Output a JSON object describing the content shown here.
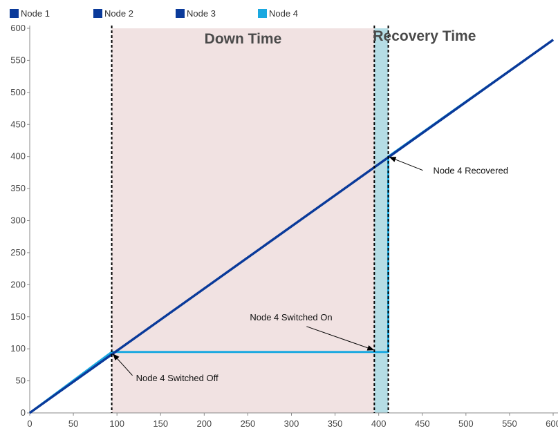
{
  "chart_data": {
    "type": "line",
    "x_range": [
      0,
      600
    ],
    "y_range": [
      0,
      600
    ],
    "x_ticks": [
      0,
      50,
      100,
      150,
      200,
      250,
      300,
      350,
      400,
      450,
      500,
      550,
      600
    ],
    "y_ticks": [
      0,
      50,
      100,
      150,
      200,
      250,
      300,
      350,
      400,
      450,
      500,
      550,
      600
    ],
    "x_tick_labels": [
      "0",
      "50",
      "100",
      "150",
      "200",
      "250",
      "300",
      "350",
      "400",
      "450",
      "500",
      "550",
      "600"
    ],
    "y_tick_labels": [
      "0",
      "50",
      "100",
      "150",
      "200",
      "250",
      "300",
      "350",
      "400",
      "450",
      "500",
      "550",
      "600"
    ],
    "grid": false,
    "legend": "top",
    "series": [
      {
        "name": "Node 1",
        "color": "#0a3a9a",
        "x": [
          0,
          600
        ],
        "y": [
          0,
          582
        ]
      },
      {
        "name": "Node 2",
        "color": "#0a3a9a",
        "x": [
          0,
          600
        ],
        "y": [
          0,
          582
        ]
      },
      {
        "name": "Node 3",
        "color": "#0a3a9a",
        "x": [
          0,
          600
        ],
        "y": [
          0,
          582
        ]
      },
      {
        "name": "Node 4",
        "color": "#1aa8e0",
        "x": [
          0,
          94,
          395,
          411,
          411,
          600
        ],
        "y": [
          0,
          95,
          95,
          95,
          400,
          582
        ]
      }
    ],
    "regions": [
      {
        "label": "Down Time",
        "x": [
          94,
          395
        ],
        "color": "#f1e2e2"
      },
      {
        "label": "Recovery Time",
        "x": [
          395,
          411
        ],
        "color": "#b5dde5"
      }
    ],
    "vlines": [
      94,
      395,
      411
    ],
    "annotations": [
      {
        "text": "Node 4 Switched Off",
        "point": [
          94,
          95
        ]
      },
      {
        "text": "Node 4 Switched On",
        "point": [
          395,
          95
        ]
      },
      {
        "text": "Node 4 Recovered",
        "point": [
          411,
          400
        ]
      }
    ]
  }
}
